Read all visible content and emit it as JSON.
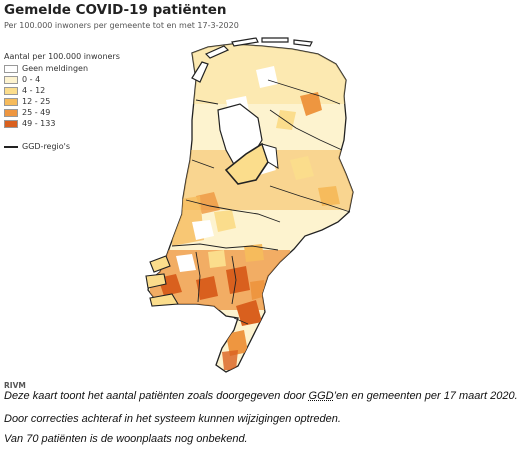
{
  "header": {
    "title": "Gemelde COVID-19 patiënten",
    "subtitle": "Per 100.000 inwoners per gemeente tot en met 17-3-2020"
  },
  "legend": {
    "title": "Aantal per 100.000 inwoners",
    "items": [
      {
        "label": "Geen meldingen",
        "color": "#ffffff"
      },
      {
        "label": "0 - 4",
        "color": "#fdf3cf"
      },
      {
        "label": "4 - 12",
        "color": "#fbdd8c"
      },
      {
        "label": "12 - 25",
        "color": "#f6bb5c"
      },
      {
        "label": "25 - 49",
        "color": "#ee9640"
      },
      {
        "label": "49 - 133",
        "color": "#d9601e"
      }
    ],
    "region_line_label": "GGD-regio's"
  },
  "source": "RIVM",
  "caption": {
    "line1_pre": "Deze kaart toont het aantal patiënten zoals doorgegeven door ",
    "line1_link": "GGD",
    "line1_post": "’en en gemeenten per 17 maart 2020.",
    "line2": "Door correcties achteraf in het systeem kunnen wijzigingen optreden.",
    "line3": "Van 70 patiënten is de woonplaats nog onbekend."
  }
}
